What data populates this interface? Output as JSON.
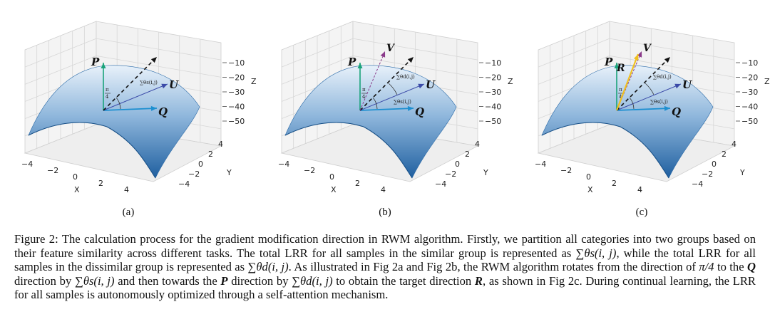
{
  "figure": {
    "panels": [
      {
        "label": "(a)",
        "vectors": [
          "P",
          "U",
          "Q"
        ],
        "angle_labels": [
          "π/4",
          "∑θs(i,j)"
        ]
      },
      {
        "label": "(b)",
        "vectors": [
          "P",
          "V",
          "U",
          "Q"
        ],
        "angle_labels": [
          "π/4",
          "∑θd(i,j)",
          "∑θs(i,j)"
        ]
      },
      {
        "label": "(c)",
        "vectors": [
          "P",
          "R",
          "V",
          "U",
          "Q"
        ],
        "angle_labels": [
          "π/4",
          "∑θd(i,j)",
          "∑θs(i,j)"
        ]
      }
    ],
    "axes": {
      "z_label": "Z",
      "z_ticks": [
        "−10",
        "−20",
        "−30",
        "−40",
        "−50"
      ],
      "x_label": "X",
      "x_ticks": [
        "−4",
        "−2",
        "0",
        "2",
        "4"
      ],
      "y_label": "Y",
      "y_ticks": [
        "4",
        "2",
        "0",
        "−2",
        "−4"
      ]
    },
    "colors": {
      "surface_top": "#e8f1fa",
      "surface_bottom": "#1f5fa0",
      "P": "#1aa37a",
      "U": "#3b4aa8",
      "Q": "#1d8fd0",
      "V": "#8a3a8a",
      "R": "#f0c020",
      "dashed": "#111111"
    }
  },
  "caption": {
    "p1": "Figure 2: The calculation process for the gradient modification direction in RWM algorithm. Firstly, we partition all categories into two groups based on their feature similarity across different tasks. The total LRR for all samples in the similar group is represented as ",
    "m1": "∑θs(i, j)",
    "p2": ", while the total LRR for all samples in the dissimilar group is represented as ",
    "m2": "∑θd(i, j)",
    "p3": ". As illustrated in Fig 2a and Fig 2b, the RWM algorithm rotates from the direction of ",
    "m3": "π/4",
    "p4": " to the ",
    "b1": "Q",
    "p5": " direction by ",
    "m4": "∑θs(i, j)",
    "p6": " and then towards the ",
    "b2": "P",
    "p7": " direction by ",
    "m5": "∑θd(i, j)",
    "p8": " to obtain the target direction ",
    "b3": "R",
    "p9": ", as shown in Fig 2c. During continual learning, the LRR for all samples is autonomously optimized through a self-attention mechanism."
  }
}
